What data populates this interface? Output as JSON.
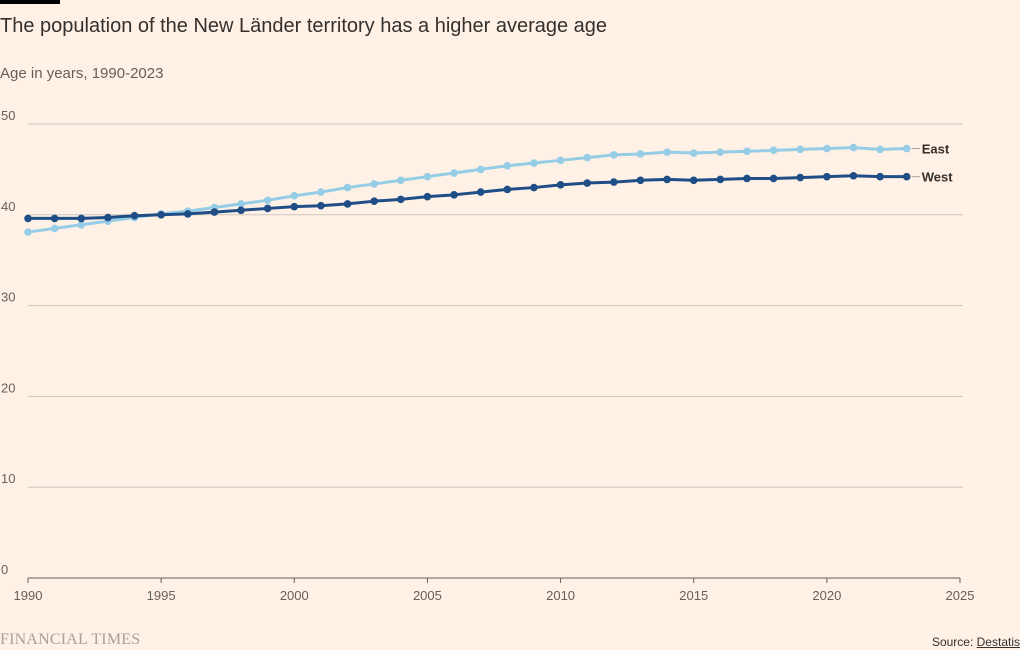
{
  "header": {
    "title": "The population of the New Länder territory has a higher average age",
    "subtitle": "Age in years, 1990-2023"
  },
  "footer": {
    "brand": "FINANCIAL TIMES",
    "source_prefix": "Source: ",
    "source_name": "Destatis"
  },
  "colors": {
    "background": "#FFF1E5",
    "east": "#96CDE6",
    "west": "#1F4E86",
    "grid": "#CFC6BD"
  },
  "chart_data": {
    "type": "line",
    "title": "The population of the New Länder territory has a higher average age",
    "subtitle": "Age in years, 1990-2023",
    "xlim": [
      1990,
      2025
    ],
    "ylim": [
      0,
      50
    ],
    "xticks": [
      1990,
      1995,
      2000,
      2005,
      2010,
      2015,
      2020,
      2025
    ],
    "yticks": [
      0,
      10,
      20,
      30,
      40,
      50
    ],
    "grid": true,
    "legend": "inline labels at line ends",
    "x": [
      1990,
      1991,
      1992,
      1993,
      1994,
      1995,
      1996,
      1997,
      1998,
      1999,
      2000,
      2001,
      2002,
      2003,
      2004,
      2005,
      2006,
      2007,
      2008,
      2009,
      2010,
      2011,
      2012,
      2013,
      2014,
      2015,
      2016,
      2017,
      2018,
      2019,
      2020,
      2021,
      2022,
      2023
    ],
    "series": [
      {
        "name": "East",
        "color": "#96CDE6",
        "values": [
          38.1,
          38.5,
          38.9,
          39.3,
          39.7,
          40.1,
          40.4,
          40.8,
          41.2,
          41.6,
          42.1,
          42.5,
          43.0,
          43.4,
          43.8,
          44.2,
          44.6,
          45.0,
          45.4,
          45.7,
          46.0,
          46.3,
          46.6,
          46.7,
          46.9,
          46.8,
          46.9,
          47.0,
          47.1,
          47.2,
          47.3,
          47.4,
          47.2,
          47.3
        ]
      },
      {
        "name": "West",
        "color": "#1F4E86",
        "values": [
          39.6,
          39.6,
          39.6,
          39.7,
          39.9,
          40.0,
          40.1,
          40.3,
          40.5,
          40.7,
          40.9,
          41.0,
          41.2,
          41.5,
          41.7,
          42.0,
          42.2,
          42.5,
          42.8,
          43.0,
          43.3,
          43.5,
          43.6,
          43.8,
          43.9,
          43.8,
          43.9,
          44.0,
          44.0,
          44.1,
          44.2,
          44.3,
          44.2,
          44.2
        ]
      }
    ]
  }
}
